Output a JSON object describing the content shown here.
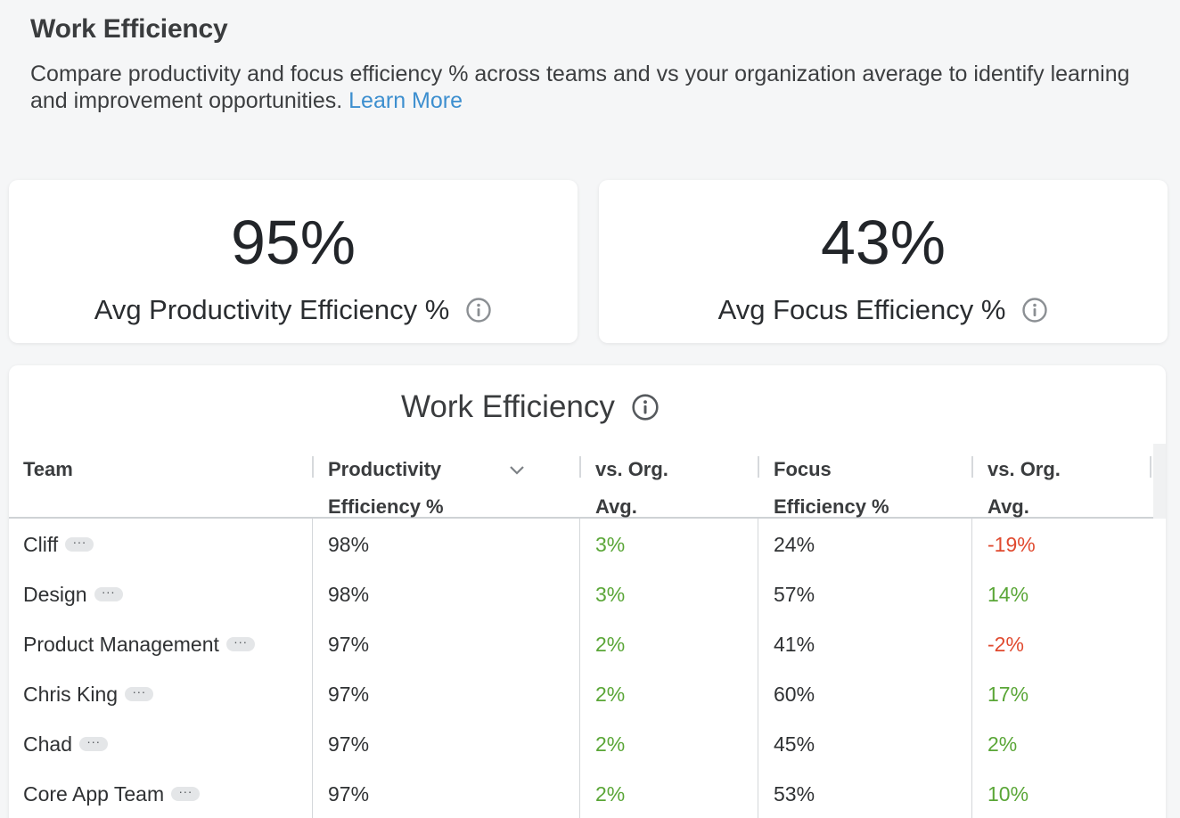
{
  "header": {
    "title": "Work Efficiency",
    "description": "Compare productivity and focus efficiency % across teams and vs your organization average to identify learning and improvement opportunities.",
    "learn_more": "Learn More"
  },
  "kpis": {
    "productivity": {
      "value": "95%",
      "label": "Avg Productivity Efficiency %"
    },
    "focus": {
      "value": "43%",
      "label": "Avg Focus Efficiency %"
    }
  },
  "table": {
    "title": "Work Efficiency",
    "columns": {
      "team": "Team",
      "productivity_1": "Productivity",
      "productivity_2": "Efficiency %",
      "vs_org_1a": "vs. Org.",
      "vs_org_1b": "Avg.",
      "focus_1": "Focus",
      "focus_2": "Efficiency %",
      "vs_org_2a": "vs. Org.",
      "vs_org_2b": "Avg."
    },
    "more_glyph": "···",
    "rows": [
      {
        "team": "Cliff",
        "productivity": "98%",
        "prod_vs_org": "3%",
        "focus": "24%",
        "focus_vs_org": "-19%"
      },
      {
        "team": "Design",
        "productivity": "98%",
        "prod_vs_org": "3%",
        "focus": "57%",
        "focus_vs_org": "14%"
      },
      {
        "team": "Product Management",
        "productivity": "97%",
        "prod_vs_org": "2%",
        "focus": "41%",
        "focus_vs_org": "-2%"
      },
      {
        "team": "Chris King",
        "productivity": "97%",
        "prod_vs_org": "2%",
        "focus": "60%",
        "focus_vs_org": "17%"
      },
      {
        "team": "Chad",
        "productivity": "97%",
        "prod_vs_org": "2%",
        "focus": "45%",
        "focus_vs_org": "2%"
      },
      {
        "team": "Core App Team",
        "productivity": "97%",
        "prod_vs_org": "2%",
        "focus": "53%",
        "focus_vs_org": "10%"
      }
    ]
  },
  "colors": {
    "positive": "#5aa637",
    "negative": "#e04a2f",
    "link": "#3d8fcf"
  }
}
